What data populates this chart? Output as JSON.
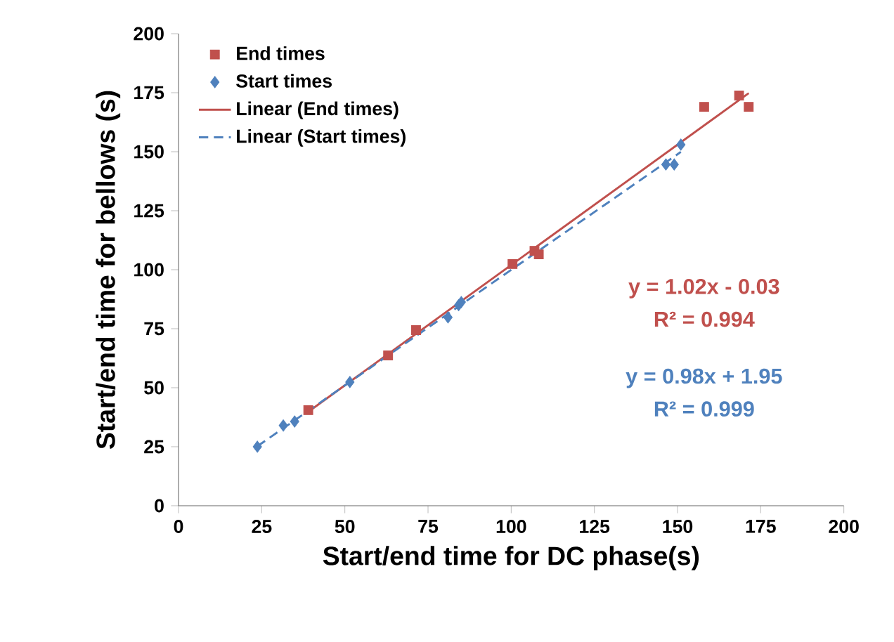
{
  "chart_data": {
    "type": "scatter",
    "xlabel": "Start/end time for DC phase(s)",
    "ylabel": "Start/end time for bellows (s)",
    "xlim": [
      0,
      200
    ],
    "xticks": [
      0,
      25,
      50,
      75,
      100,
      125,
      150,
      175,
      200
    ],
    "ylim": [
      0,
      200
    ],
    "yticks": [
      0,
      25,
      50,
      75,
      100,
      125,
      150,
      175,
      200
    ],
    "legend": "top left",
    "series": [
      {
        "name": "End times",
        "type": "scatter",
        "marker": "square",
        "color": "#c0504d",
        "x": [
          39,
          63,
          71.4,
          100.4,
          107,
          108.3,
          158,
          168.5,
          171.4
        ],
        "values": [
          40.5,
          63.7,
          74.4,
          102.4,
          108,
          106.5,
          169,
          173.8,
          169
        ]
      },
      {
        "name": "Start times",
        "type": "scatter",
        "marker": "diamond",
        "color": "#4f81bd",
        "x": [
          23.7,
          31.5,
          34.9,
          51.5,
          81,
          84.2,
          85,
          146.5,
          149,
          151
        ],
        "values": [
          25,
          34,
          35.7,
          52.4,
          79.8,
          85,
          86.3,
          144.6,
          144.6,
          153
        ]
      },
      {
        "name": "Linear (End times)",
        "type": "line",
        "line_style": "solid",
        "color": "#c0504d",
        "x": [
          39,
          171.4
        ],
        "values": [
          39.8,
          174.8
        ]
      },
      {
        "name": "Linear (Start times)",
        "type": "line",
        "line_style": "dashed",
        "color": "#4f81bd",
        "x": [
          23.7,
          151
        ],
        "values": [
          25.2,
          149.9
        ]
      }
    ],
    "annotations": [
      "y = 1.02x - 0.03",
      "R² = 0.994",
      "y = 0.98x + 1.95",
      "R² = 0.999"
    ]
  }
}
